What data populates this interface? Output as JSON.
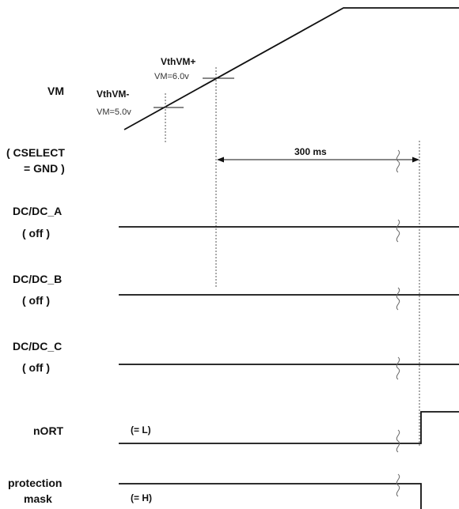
{
  "signals": {
    "vm": "VM",
    "cselect": [
      "( CSELECT",
      "= GND )"
    ],
    "dcdc_a": [
      "DC/DC_A",
      "( off )"
    ],
    "dcdc_b": [
      "DC/DC_B",
      "( off )"
    ],
    "dcdc_c": [
      "DC/DC_C",
      "( off )"
    ],
    "nort": "nORT",
    "protection_mask": [
      "protection",
      "mask"
    ]
  },
  "thresholds": {
    "minus_label": "VthVM-",
    "minus_value": "VM=5.0v",
    "plus_label": "VthVM+",
    "plus_value": "VM=6.0v"
  },
  "timing": {
    "delay": "300 ms"
  },
  "levels": {
    "nort_initial": "(= L)",
    "mask_initial": "(= H)"
  }
}
